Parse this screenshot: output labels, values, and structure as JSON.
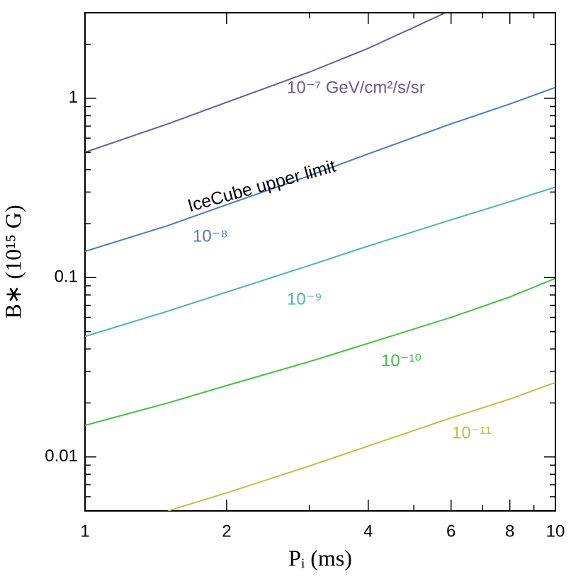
{
  "chart_data": {
    "type": "line",
    "x_label": "Pᵢ (ms)",
    "y_label": "B∗ (10¹⁵ G)",
    "x": [
      1,
      1.5,
      2,
      3,
      4,
      6,
      8,
      10
    ],
    "series": [
      {
        "name": "10⁻⁷ GeV/cm²/s/sr",
        "color": "#6a5aa0",
        "values": [
          0.5,
          0.72,
          0.95,
          1.4,
          1.9,
          3.1,
          null,
          null
        ]
      },
      {
        "name": "10⁻⁸",
        "color": "#4a7cc0",
        "values": [
          0.14,
          0.195,
          0.255,
          0.37,
          0.49,
          0.72,
          0.93,
          1.15
        ]
      },
      {
        "name": "10⁻⁹",
        "color": "#4ab4b8",
        "values": [
          0.047,
          0.065,
          0.083,
          0.117,
          0.15,
          0.21,
          0.265,
          0.32
        ]
      },
      {
        "name": "10⁻¹⁰",
        "color": "#44c044",
        "values": [
          0.015,
          0.02,
          0.025,
          0.034,
          0.043,
          0.06,
          0.078,
          0.099
        ]
      },
      {
        "name": "10⁻¹¹",
        "color": "#c8bc40",
        "values": [
          null,
          0.005,
          0.0063,
          0.0089,
          0.0115,
          0.0165,
          0.021,
          0.026
        ]
      }
    ],
    "annotation": "IceCube upper limit",
    "xlog": true,
    "ylog": true,
    "xlim": [
      1,
      10
    ],
    "ylim": [
      0.005,
      3
    ],
    "xticks": [
      1,
      2,
      4,
      6,
      8,
      10
    ],
    "xminorticks": [
      3,
      5,
      7,
      9
    ],
    "yticks": [
      0.01,
      0.1,
      1
    ],
    "yminorticks": [
      0.006,
      0.007,
      0.008,
      0.009,
      0.02,
      0.03,
      0.04,
      0.05,
      0.06,
      0.07,
      0.08,
      0.09,
      0.2,
      0.3,
      0.4,
      0.5,
      0.6,
      0.7,
      0.8,
      0.9,
      2,
      3
    ]
  }
}
